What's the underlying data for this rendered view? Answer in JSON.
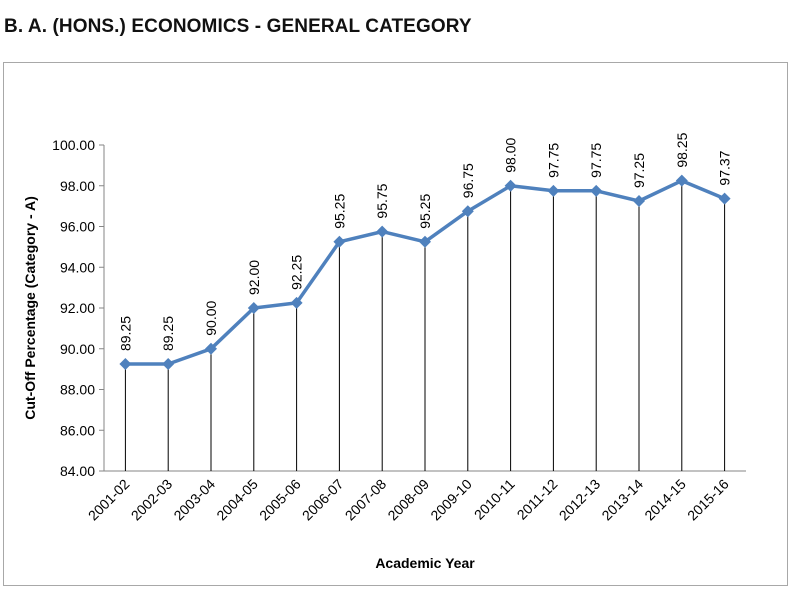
{
  "page": {
    "title": "B. A. (HONS.) ECONOMICS - GENERAL CATEGORY"
  },
  "chart_data": {
    "type": "line",
    "title": "B. A. (HONS.) ECONOMICS - GENERAL CATEGORY",
    "xlabel": "Academic Year",
    "ylabel": "Cut-Off Percentage (Category - A)",
    "categories": [
      "2001-02",
      "2002-03",
      "2003-04",
      "2004-05",
      "2005-06",
      "2006-07",
      "2007-08",
      "2008-09",
      "2009-10",
      "2010-11",
      "2011-12",
      "2012-13",
      "2013-14",
      "2014-15",
      "2015-16"
    ],
    "series": [
      {
        "values": [
          89.25,
          89.25,
          90.0,
          92.0,
          92.25,
          95.25,
          95.75,
          95.25,
          96.75,
          98.0,
          97.75,
          97.75,
          97.25,
          98.25,
          97.37
        ]
      }
    ],
    "data_labels": [
      "89.25",
      "89.25",
      "90.00",
      "92.00",
      "92.25",
      "95.25",
      "95.75",
      "95.25",
      "96.75",
      "98.00",
      "97.75",
      "97.75",
      "97.25",
      "98.25",
      "97.37"
    ],
    "ylim": [
      84,
      100
    ],
    "yticks": [
      "84.00",
      "86.00",
      "88.00",
      "90.00",
      "92.00",
      "94.00",
      "96.00",
      "98.00",
      "100.00"
    ],
    "grid": false,
    "drop_lines": true,
    "legend": "none",
    "colors": {
      "line": "#4f81bd",
      "marker": "#4f81bd",
      "drop_line": "#000000",
      "axis": "#868686"
    }
  }
}
